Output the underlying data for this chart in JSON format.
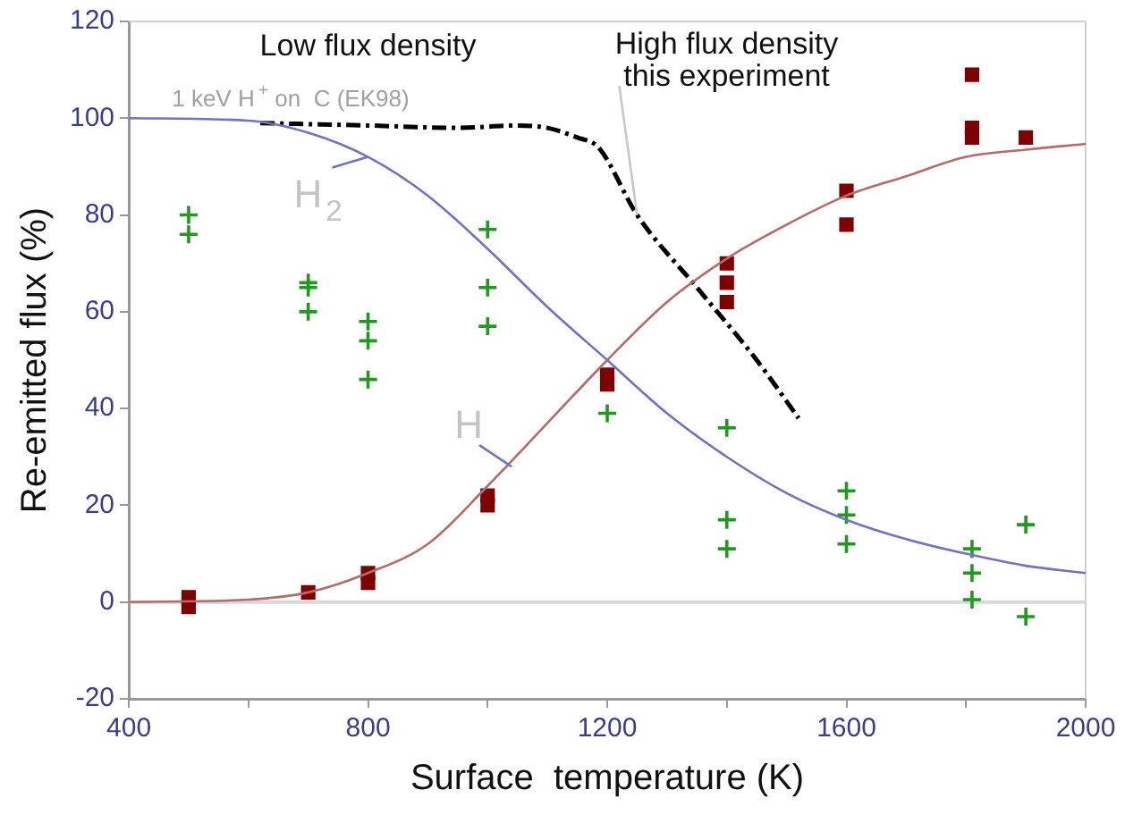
{
  "chart_data": {
    "type": "scatter",
    "xlabel": "Surface  temperature (K)",
    "ylabel": "Re-emitted flux (%)",
    "xlim": [
      400,
      2000
    ],
    "xticks": [
      400,
      {
        "value": 600,
        "label": null
      },
      800,
      {
        "value": 1000,
        "label": null
      },
      1200,
      {
        "value": 1400,
        "label": null
      },
      1600,
      {
        "value": 1800,
        "label": null
      },
      2000
    ],
    "ylim": [
      -20,
      120
    ],
    "yticks": [
      -20,
      0,
      20,
      40,
      60,
      80,
      100,
      120
    ],
    "grid": false,
    "legend": false,
    "ref_lines": [
      {
        "axis": "y",
        "value": 0,
        "color": "#d8d8d8"
      }
    ],
    "series": [
      {
        "type": "line",
        "color": "#7272c4",
        "marker": "none",
        "line_style": "solid",
        "x": [
          400,
          600,
          700,
          800,
          900,
          1000,
          1100,
          1200,
          1300,
          1400,
          1500,
          1600,
          1700,
          1800,
          1900,
          2000
        ],
        "values": [
          100,
          99.5,
          97,
          92,
          84,
          73,
          61,
          50,
          39,
          30,
          22.5,
          17,
          13,
          10,
          7.5,
          6
        ]
      },
      {
        "type": "line",
        "color": "#b86a6a",
        "marker": "none",
        "line_style": "solid",
        "x": [
          400,
          600,
          700,
          800,
          900,
          1000,
          1100,
          1200,
          1300,
          1400,
          1500,
          1600,
          1700,
          1800,
          1900,
          2000
        ],
        "values": [
          0,
          0.5,
          2,
          6,
          12,
          24,
          37,
          50,
          62,
          71,
          78,
          84,
          88,
          92,
          93.5,
          94.7
        ]
      },
      {
        "type": "line",
        "color": "#000000",
        "marker": "none",
        "line_style": "dashed",
        "x": [
          620,
          800,
          950,
          1050,
          1100,
          1150,
          1185,
          1250,
          1350,
          1450,
          1520
        ],
        "values": [
          99,
          98.5,
          98,
          98.5,
          98,
          96,
          94,
          80,
          65,
          50,
          38
        ]
      },
      {
        "color": "#1f9a1f",
        "marker": "cross",
        "x": [
          500,
          500,
          700,
          700,
          700,
          800,
          800,
          800,
          1000,
          1000,
          1000,
          1200,
          1400,
          1400,
          1400,
          1600,
          1600,
          1600,
          1810,
          1810,
          1810,
          1900,
          1900
        ],
        "values": [
          80,
          76,
          66,
          65,
          60,
          58,
          54,
          46,
          77,
          65,
          57,
          39,
          36,
          17,
          11,
          23,
          18,
          12,
          11,
          6,
          0.5,
          16,
          -3
        ]
      },
      {
        "color": "#7f0000",
        "marker": "square",
        "x": [
          500,
          500,
          700,
          800,
          800,
          1000,
          1000,
          1200,
          1200,
          1400,
          1400,
          1400,
          1600,
          1600,
          1810,
          1810,
          1810,
          1900
        ],
        "values": [
          1,
          -1,
          2,
          4,
          6,
          20,
          22,
          45,
          47,
          62,
          66,
          70,
          78,
          85,
          96,
          98,
          109,
          96
        ]
      }
    ],
    "annotations": [
      "Low flux density",
      "1 keV H$^{+}$ on  C (EK98)",
      {
        "text": "High flux density\nthis experiment",
        "x": 1250,
        "y": 80
      },
      {
        "text": "H$_{2}$",
        "x": 800,
        "y": 92
      },
      {
        "text": "H",
        "x": 1040,
        "y": 28
      }
    ]
  }
}
